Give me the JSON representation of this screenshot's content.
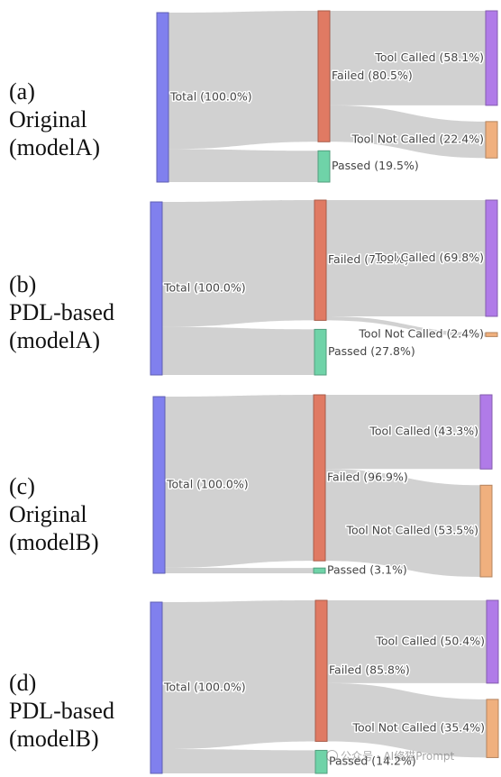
{
  "watermark": "公众号 · AI修猫Prompt",
  "node_colors": {
    "total": "#8080ee",
    "failed": "#e07a63",
    "passed": "#6fd3a8",
    "tool_called": "#b07be8",
    "tool_not_called": "#f0b07e"
  },
  "chart_data": [
    {
      "type": "sankey",
      "panel_label": [
        "(a)",
        "Original",
        "(modelA)"
      ],
      "nodes": [
        {
          "id": "total",
          "label": "Total (100.0%)",
          "value": 100.0
        },
        {
          "id": "failed",
          "label": "Failed (80.5%)",
          "value": 80.5
        },
        {
          "id": "passed",
          "label": "Passed (19.5%)",
          "value": 19.5
        },
        {
          "id": "tool_called",
          "label": "Tool Called (58.1%)",
          "value": 58.1
        },
        {
          "id": "tool_not_called",
          "label": "Tool Not Called (22.4%)",
          "value": 22.4
        }
      ],
      "links": [
        {
          "source": "total",
          "target": "failed",
          "value": 80.5
        },
        {
          "source": "total",
          "target": "passed",
          "value": 19.5
        },
        {
          "source": "failed",
          "target": "tool_called",
          "value": 58.1
        },
        {
          "source": "failed",
          "target": "tool_not_called",
          "value": 22.4
        }
      ]
    },
    {
      "type": "sankey",
      "panel_label": [
        "(b)",
        "PDL-based",
        "(modelA)"
      ],
      "nodes": [
        {
          "id": "total",
          "label": "Total (100.0%)",
          "value": 100.0
        },
        {
          "id": "failed",
          "label": "Failed (72.2%)",
          "value": 72.2
        },
        {
          "id": "passed",
          "label": "Passed (27.8%)",
          "value": 27.8
        },
        {
          "id": "tool_called",
          "label": "Tool Called (69.8%)",
          "value": 69.8
        },
        {
          "id": "tool_not_called",
          "label": "Tool Not Called (2.4%)",
          "value": 2.4
        }
      ],
      "links": [
        {
          "source": "total",
          "target": "failed",
          "value": 72.2
        },
        {
          "source": "total",
          "target": "passed",
          "value": 27.8
        },
        {
          "source": "failed",
          "target": "tool_called",
          "value": 69.8
        },
        {
          "source": "failed",
          "target": "tool_not_called",
          "value": 2.4
        }
      ]
    },
    {
      "type": "sankey",
      "panel_label": [
        "(c)",
        "Original",
        "(modelB)"
      ],
      "nodes": [
        {
          "id": "total",
          "label": "Total (100.0%)",
          "value": 100.0
        },
        {
          "id": "failed",
          "label": "Failed (96.9%)",
          "value": 96.9
        },
        {
          "id": "passed",
          "label": "Passed (3.1%)",
          "value": 3.1
        },
        {
          "id": "tool_called",
          "label": "Tool Called (43.3%)",
          "value": 43.3
        },
        {
          "id": "tool_not_called",
          "label": "Tool Not Called (53.5%)",
          "value": 53.5
        }
      ],
      "links": [
        {
          "source": "total",
          "target": "failed",
          "value": 96.9
        },
        {
          "source": "total",
          "target": "passed",
          "value": 3.1
        },
        {
          "source": "failed",
          "target": "tool_called",
          "value": 43.3
        },
        {
          "source": "failed",
          "target": "tool_not_called",
          "value": 53.5
        }
      ]
    },
    {
      "type": "sankey",
      "panel_label": [
        "(d)",
        "PDL-based",
        "(modelB)"
      ],
      "nodes": [
        {
          "id": "total",
          "label": "Total (100.0%)",
          "value": 100.0
        },
        {
          "id": "failed",
          "label": "Failed (85.8%)",
          "value": 85.8
        },
        {
          "id": "passed",
          "label": "Passed (14.2%)",
          "value": 14.2
        },
        {
          "id": "tool_called",
          "label": "Tool Called (50.4%)",
          "value": 50.4
        },
        {
          "id": "tool_not_called",
          "label": "Tool Not Called (35.4%)",
          "value": 35.4
        }
      ],
      "links": [
        {
          "source": "total",
          "target": "failed",
          "value": 85.8
        },
        {
          "source": "total",
          "target": "passed",
          "value": 14.2
        },
        {
          "source": "failed",
          "target": "tool_called",
          "value": 50.4
        },
        {
          "source": "failed",
          "target": "tool_not_called",
          "value": 35.4
        }
      ]
    }
  ]
}
